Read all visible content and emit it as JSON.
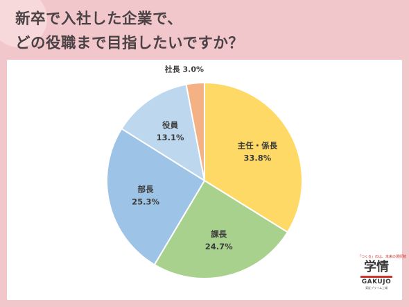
{
  "header": {
    "title_line1": "新卒で入社した企業で、",
    "title_line2": "どの役職まで目指したいですか？"
  },
  "chart_data": {
    "type": "pie",
    "title": "新卒で入社した企業で、どの役職まで目指したいですか？",
    "unit": "%",
    "slices": [
      {
        "label": "主任・係長",
        "value": 33.8,
        "display": "33.8%",
        "color": "#ffd966"
      },
      {
        "label": "課長",
        "value": 24.7,
        "display": "24.7%",
        "color": "#a9d18e"
      },
      {
        "label": "部長",
        "value": 25.3,
        "display": "25.3%",
        "color": "#9dc3e6"
      },
      {
        "label": "役員",
        "value": 13.1,
        "display": "13.1%",
        "color": "#bdd7ee"
      },
      {
        "label": "社長",
        "value": 3.0,
        "display": "3.0%",
        "color": "#f4b183"
      }
    ],
    "start": "12 o'clock",
    "direction": "clockwise"
  },
  "logo": {
    "tagline": "「つくる」のは、未来の選択肢",
    "kanji": "学情",
    "wordmark": "GAKUJO",
    "subtext": "東証プライム上場"
  }
}
